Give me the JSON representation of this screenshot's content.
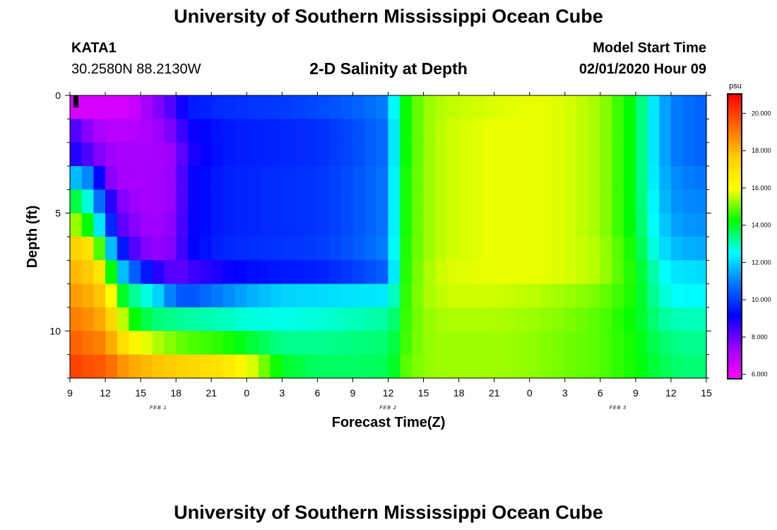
{
  "title_top": "University of Southern Mississippi Ocean Cube",
  "title_bottom": "University of Southern Mississippi Ocean Cube",
  "header": {
    "station_id": "KATA1",
    "coordinates": "30.2580N 88.2130W",
    "plot_title": "2-D Salinity at Depth",
    "model_start_label": "Model Start Time",
    "model_start_value": "02/01/2020 Hour 09"
  },
  "chart_data": {
    "type": "heatmap",
    "title": "2-D Salinity at Depth",
    "xlabel": "Forecast Time(Z)",
    "ylabel": "Depth (ft)",
    "colorbar_unit": "psu",
    "x_ticks": [
      "9",
      "12",
      "15",
      "18",
      "21",
      "0",
      "3",
      "6",
      "9",
      "12",
      "15",
      "18",
      "21",
      "0",
      "3",
      "6",
      "9",
      "12",
      "15"
    ],
    "date_labels": [
      {
        "text": "FEB 1",
        "tick_index": 2.5
      },
      {
        "text": "FEB 2",
        "tick_index": 9
      },
      {
        "text": "FEB 3",
        "tick_index": 15.5
      }
    ],
    "y_ticks": [
      0,
      5,
      10
    ],
    "ylim": [
      0,
      12
    ],
    "xlim_hours": [
      0,
      54
    ],
    "depth_levels_ft": [
      0.5,
      1.5,
      2.5,
      3.5,
      4.5,
      5.5,
      6.5,
      7.5,
      8.5,
      9.5,
      10.5,
      11.5
    ],
    "colorbar_ticks": [
      "6.000",
      "8.000",
      "10.000",
      "12.000",
      "14.000",
      "16.000",
      "18.000",
      "20.000"
    ],
    "colorbar_range": [
      5.8,
      21.0
    ],
    "colormap": [
      "#ff00ff",
      "#9900ff",
      "#0000ff",
      "#0077ff",
      "#00ffff",
      "#00ff00",
      "#ffff00",
      "#ffcc00",
      "#ff6600",
      "#ff0000"
    ],
    "time_nodes_hours": [
      0,
      1,
      2,
      3,
      4,
      5,
      7,
      9,
      10,
      13,
      15,
      18,
      21,
      24,
      27,
      27.5,
      28,
      30,
      32,
      36,
      39,
      42,
      45,
      48,
      49,
      50,
      51,
      52,
      54
    ],
    "salinity_psu": [
      [
        6.5,
        6.5,
        6.5,
        6.5,
        6.5,
        6.5,
        7.5,
        8.5,
        9.5,
        9.8,
        9.9,
        10.0,
        10.2,
        10.5,
        11.0,
        12.5,
        14.0,
        15.2,
        15.5,
        15.7,
        15.8,
        15.7,
        15.3,
        14.0,
        12.8,
        11.8,
        11.0,
        10.8,
        10.5
      ],
      [
        8.5,
        8.0,
        7.3,
        7.0,
        7.0,
        7.0,
        7.2,
        8.0,
        9.0,
        9.5,
        9.6,
        9.7,
        9.8,
        10.2,
        10.8,
        12.3,
        14.0,
        15.2,
        15.6,
        15.8,
        15.8,
        15.7,
        15.3,
        14.0,
        12.8,
        11.8,
        11.0,
        10.8,
        10.5
      ],
      [
        9.0,
        8.6,
        8.0,
        7.5,
        7.2,
        7.2,
        7.2,
        7.5,
        8.8,
        9.5,
        9.6,
        9.7,
        9.8,
        10.2,
        10.8,
        12.3,
        14.0,
        15.2,
        15.6,
        15.8,
        15.8,
        15.7,
        15.3,
        14.0,
        12.8,
        11.8,
        11.0,
        10.8,
        10.5
      ],
      [
        11.8,
        11.6,
        10.5,
        8.0,
        7.3,
        7.2,
        7.2,
        7.6,
        9.0,
        9.6,
        9.7,
        9.8,
        9.9,
        10.3,
        10.9,
        12.4,
        14.1,
        15.2,
        15.6,
        15.8,
        15.8,
        15.7,
        15.3,
        14.0,
        12.8,
        11.9,
        11.2,
        11.0,
        10.8
      ],
      [
        14.0,
        13.6,
        12.0,
        9.5,
        8.0,
        7.5,
        7.2,
        7.6,
        9.0,
        9.6,
        9.7,
        9.8,
        9.9,
        10.3,
        10.9,
        12.4,
        14.1,
        15.2,
        15.6,
        15.8,
        15.8,
        15.7,
        15.3,
        14.0,
        12.9,
        12.0,
        11.3,
        11.1,
        11.0
      ],
      [
        15.5,
        15.0,
        13.5,
        11.0,
        8.5,
        7.8,
        7.3,
        7.7,
        9.0,
        9.6,
        9.7,
        9.8,
        9.9,
        10.3,
        10.9,
        12.4,
        14.1,
        15.2,
        15.6,
        15.8,
        15.8,
        15.7,
        15.3,
        14.0,
        13.0,
        12.2,
        11.5,
        11.3,
        11.2
      ],
      [
        17.5,
        17.2,
        16.5,
        13.0,
        10.5,
        8.5,
        7.5,
        7.8,
        9.1,
        9.7,
        9.8,
        9.9,
        10.0,
        10.4,
        11.0,
        12.5,
        14.2,
        15.2,
        15.6,
        15.8,
        15.8,
        15.7,
        15.4,
        14.2,
        13.2,
        12.4,
        11.8,
        11.6,
        11.5
      ],
      [
        18.0,
        17.8,
        17.5,
        16.0,
        12.5,
        11.0,
        9.0,
        8.0,
        8.4,
        9.0,
        9.3,
        9.5,
        9.6,
        10.0,
        10.6,
        12.3,
        14.2,
        15.3,
        15.7,
        15.8,
        15.8,
        15.7,
        15.4,
        14.3,
        13.5,
        12.8,
        12.3,
        12.2,
        12.1
      ],
      [
        18.5,
        18.3,
        18.0,
        17.5,
        14.5,
        13.5,
        12.5,
        10.5,
        10.3,
        11.0,
        11.5,
        12.0,
        12.1,
        12.2,
        12.3,
        13.0,
        14.3,
        15.3,
        15.6,
        15.6,
        15.5,
        15.3,
        15.0,
        14.3,
        13.6,
        13.0,
        12.6,
        12.5,
        12.5
      ],
      [
        19.0,
        18.8,
        18.5,
        18.0,
        16.5,
        14.5,
        13.5,
        13.3,
        13.2,
        13.0,
        12.8,
        12.7,
        12.8,
        13.0,
        13.2,
        13.5,
        14.4,
        15.2,
        15.4,
        15.4,
        15.3,
        15.1,
        14.8,
        14.2,
        13.7,
        13.3,
        13.1,
        13.0,
        13.0
      ],
      [
        19.5,
        19.2,
        19.0,
        18.8,
        17.5,
        16.5,
        15.5,
        15.0,
        14.8,
        14.5,
        14.0,
        13.3,
        13.3,
        13.4,
        13.5,
        13.8,
        14.5,
        15.2,
        15.3,
        15.3,
        15.2,
        15.0,
        14.8,
        14.3,
        13.9,
        13.6,
        13.4,
        13.3,
        13.3
      ],
      [
        20.0,
        19.8,
        19.6,
        19.5,
        18.8,
        18.3,
        17.8,
        17.5,
        17.3,
        16.8,
        16.0,
        14.0,
        13.6,
        13.6,
        13.7,
        14.0,
        14.7,
        15.2,
        15.3,
        15.3,
        15.2,
        15.0,
        14.8,
        14.3,
        14.0,
        13.8,
        13.6,
        13.5,
        13.5
      ]
    ]
  }
}
